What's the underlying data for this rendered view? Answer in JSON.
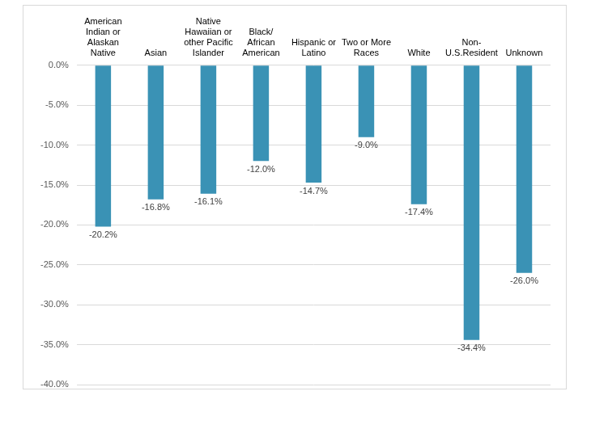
{
  "chart_data": {
    "type": "bar",
    "categories": [
      "American Indian or Alaskan Native",
      "Asian",
      "Native Hawaiian or other Pacific Islander",
      "Black/ African American",
      "Hispanic or Latino",
      "Two or More Races",
      "White",
      "Non-U.S.Resident",
      "Unknown"
    ],
    "values": [
      -20.2,
      -16.8,
      -16.1,
      -12.0,
      -14.7,
      -9.0,
      -17.4,
      -34.4,
      -26.0
    ],
    "value_labels": [
      "-20.2%",
      "-16.8%",
      "-16.1%",
      "-12.0%",
      "-14.7%",
      "-9.0%",
      "-17.4%",
      "-34.4%",
      "-26.0%"
    ],
    "color": "#3a92b5",
    "ylim": [
      -40,
      0
    ],
    "yticks": [
      {
        "value": 0,
        "label": "0.0%"
      },
      {
        "value": -5,
        "label": "-5.0%"
      },
      {
        "value": -10,
        "label": "-10.0%"
      },
      {
        "value": -15,
        "label": "-15.0%"
      },
      {
        "value": -20,
        "label": "-20.0%"
      },
      {
        "value": -25,
        "label": "-25.0%"
      },
      {
        "value": -30,
        "label": "-30.0%"
      },
      {
        "value": -35,
        "label": "-35.0%"
      },
      {
        "value": -40,
        "label": "-40.0%"
      }
    ],
    "grid": true,
    "data_labels": true
  }
}
